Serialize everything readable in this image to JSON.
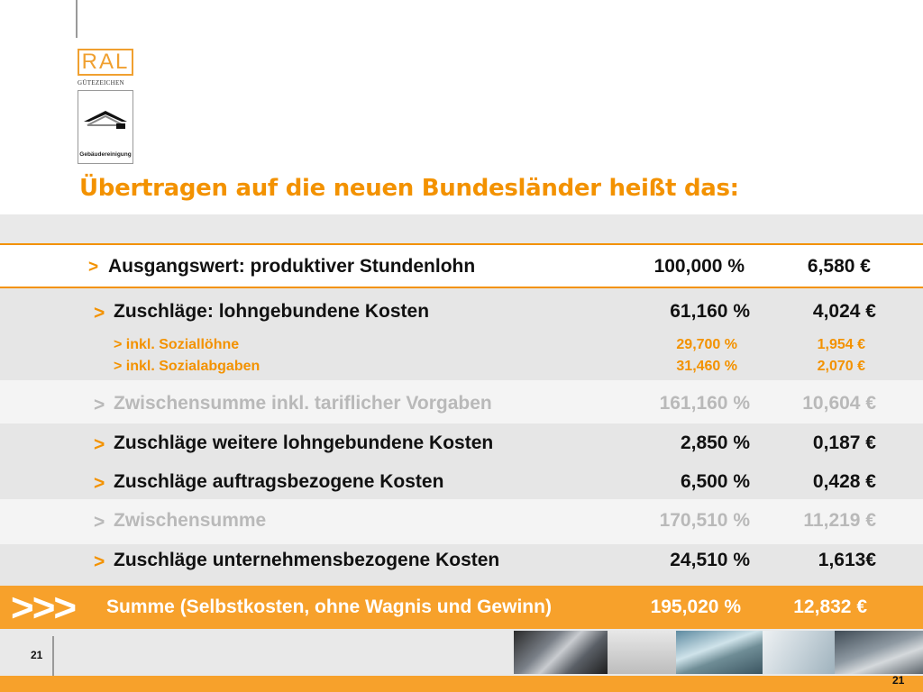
{
  "logo": {
    "brand": "RAL",
    "subtitle": "GÜTEZEICHEN",
    "card_label": "Gebäudereinigung"
  },
  "heading": "Übertragen auf die neuen Bundesländer heißt das:",
  "rows": [
    {
      "arrow": ">",
      "label": "Ausgangswert: produktiver Stundenlohn",
      "pct": "100,000 %",
      "eur": "6,580 €"
    },
    {
      "arrow": ">",
      "label": "Zuschläge: lohngebundene Kosten",
      "pct": "61,160 %",
      "eur": "4,024 €"
    },
    {
      "label": "> inkl. Soziallöhne",
      "pct": "29,700 %",
      "eur": "1,954 €"
    },
    {
      "label": "> inkl. Sozialabgaben",
      "pct": "31,460 %",
      "eur": "2,070 €"
    },
    {
      "arrow": ">",
      "label": "Zwischensumme inkl. tariflicher Vorgaben",
      "pct": "161,160 %",
      "eur": "10,604 €"
    },
    {
      "arrow": ">",
      "label": "Zuschläge weitere lohngebundene Kosten",
      "pct": "2,850 %",
      "eur": "0,187 €"
    },
    {
      "arrow": ">",
      "label": "Zuschläge auftragsbezogene Kosten",
      "pct": "6,500 %",
      "eur": "0,428 €"
    },
    {
      "arrow": ">",
      "label": "Zwischensumme",
      "pct": "170,510 %",
      "eur": "11,219 €"
    },
    {
      "arrow": ">",
      "label": "Zuschläge unternehmensbezogene Kosten",
      "pct": "24,510 %",
      "eur": "1,613€"
    }
  ],
  "total": {
    "arrows": ">>>",
    "label": "Summe (Selbstkosten, ohne Wagnis und Gewinn)",
    "pct": "195,020 %",
    "eur": "12,832 €"
  },
  "page_number_left": "21",
  "page_number_right": "21",
  "colors": {
    "accent": "#f39200",
    "band_light": "#f4f4f4",
    "band_mid": "#e6e6e6",
    "total_bg": "#f7a12b"
  }
}
